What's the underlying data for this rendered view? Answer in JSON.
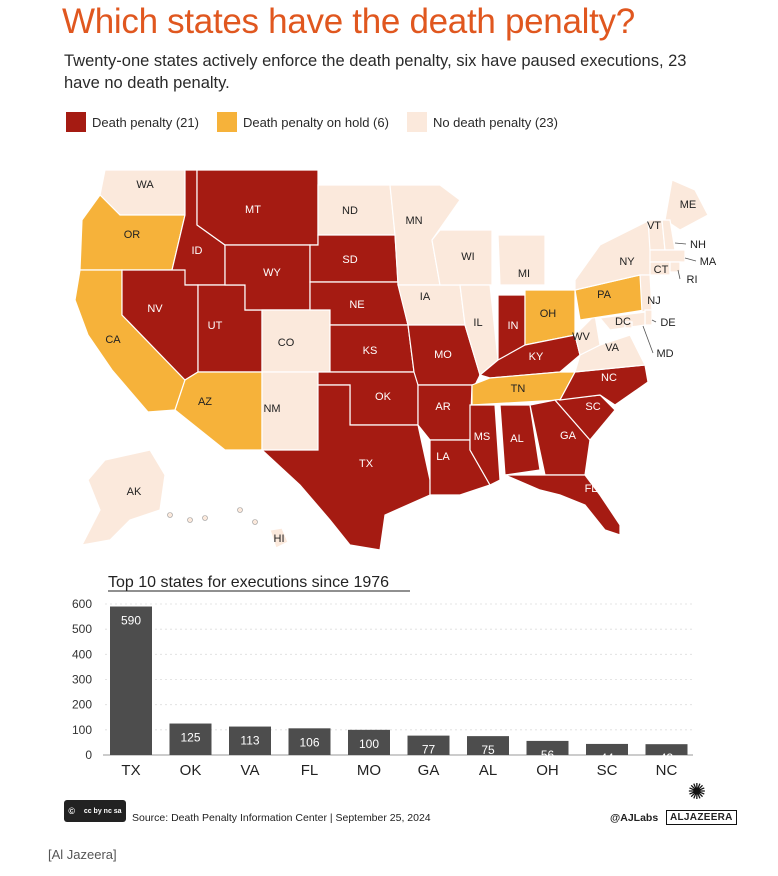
{
  "header": {
    "title": "Which states have the death penalty?",
    "subtitle": "Twenty-one states actively enforce the death penalty, six have paused executions, 23 have no death penalty."
  },
  "legend": [
    {
      "label": "Death penalty (21)",
      "color": "#a51b12"
    },
    {
      "label": "Death penalty on hold (6)",
      "color": "#f6b23a"
    },
    {
      "label": "No death penalty (23)",
      "color": "#fbe9dc"
    }
  ],
  "map": {
    "status_colors": {
      "dp": "#a51b12",
      "hold": "#f6b23a",
      "none": "#fbe9dc"
    },
    "states": [
      {
        "abbr": "WA",
        "status": "none"
      },
      {
        "abbr": "OR",
        "status": "hold"
      },
      {
        "abbr": "CA",
        "status": "hold"
      },
      {
        "abbr": "ID",
        "status": "dp"
      },
      {
        "abbr": "NV",
        "status": "dp"
      },
      {
        "abbr": "UT",
        "status": "dp"
      },
      {
        "abbr": "AZ",
        "status": "hold"
      },
      {
        "abbr": "MT",
        "status": "dp"
      },
      {
        "abbr": "WY",
        "status": "dp"
      },
      {
        "abbr": "CO",
        "status": "none"
      },
      {
        "abbr": "NM",
        "status": "none"
      },
      {
        "abbr": "ND",
        "status": "none"
      },
      {
        "abbr": "SD",
        "status": "dp"
      },
      {
        "abbr": "NE",
        "status": "dp"
      },
      {
        "abbr": "KS",
        "status": "dp"
      },
      {
        "abbr": "OK",
        "status": "dp"
      },
      {
        "abbr": "TX",
        "status": "dp"
      },
      {
        "abbr": "MN",
        "status": "none"
      },
      {
        "abbr": "IA",
        "status": "none"
      },
      {
        "abbr": "MO",
        "status": "dp"
      },
      {
        "abbr": "AR",
        "status": "dp"
      },
      {
        "abbr": "LA",
        "status": "dp"
      },
      {
        "abbr": "WI",
        "status": "none"
      },
      {
        "abbr": "IL",
        "status": "none"
      },
      {
        "abbr": "MI",
        "status": "none"
      },
      {
        "abbr": "IN",
        "status": "dp"
      },
      {
        "abbr": "OH",
        "status": "hold"
      },
      {
        "abbr": "KY",
        "status": "dp"
      },
      {
        "abbr": "TN",
        "status": "hold"
      },
      {
        "abbr": "MS",
        "status": "dp"
      },
      {
        "abbr": "AL",
        "status": "dp"
      },
      {
        "abbr": "GA",
        "status": "dp"
      },
      {
        "abbr": "FL",
        "status": "dp"
      },
      {
        "abbr": "SC",
        "status": "dp"
      },
      {
        "abbr": "NC",
        "status": "dp"
      },
      {
        "abbr": "VA",
        "status": "none"
      },
      {
        "abbr": "WV",
        "status": "none"
      },
      {
        "abbr": "PA",
        "status": "hold"
      },
      {
        "abbr": "NY",
        "status": "none"
      },
      {
        "abbr": "ME",
        "status": "none"
      },
      {
        "abbr": "VT",
        "status": "none"
      },
      {
        "abbr": "NH",
        "status": "none"
      },
      {
        "abbr": "MA",
        "status": "none"
      },
      {
        "abbr": "CT",
        "status": "none"
      },
      {
        "abbr": "RI",
        "status": "none"
      },
      {
        "abbr": "NJ",
        "status": "none"
      },
      {
        "abbr": "DE",
        "status": "none"
      },
      {
        "abbr": "MD",
        "status": "none"
      },
      {
        "abbr": "DC",
        "status": "none"
      },
      {
        "abbr": "AK",
        "status": "none"
      },
      {
        "abbr": "HI",
        "status": "none"
      }
    ]
  },
  "chart_data": {
    "type": "bar",
    "title": "Top 10 states for executions since 1976",
    "categories": [
      "TX",
      "OK",
      "VA",
      "FL",
      "MO",
      "GA",
      "AL",
      "OH",
      "SC",
      "NC"
    ],
    "values": [
      590,
      125,
      113,
      106,
      100,
      77,
      75,
      56,
      44,
      43
    ],
    "yticks": [
      0,
      100,
      200,
      300,
      400,
      500,
      600
    ],
    "ylim": [
      0,
      600
    ],
    "bar_color": "#4d4d4d",
    "xlabel": "",
    "ylabel": ""
  },
  "footer": {
    "license": "cc by nc sa",
    "source": "Source: Death Penalty Information Center   |   September 25, 2024",
    "labs": "@AJLabs",
    "brand": "ALJAZEERA"
  },
  "credit": "[Al Jazeera]"
}
